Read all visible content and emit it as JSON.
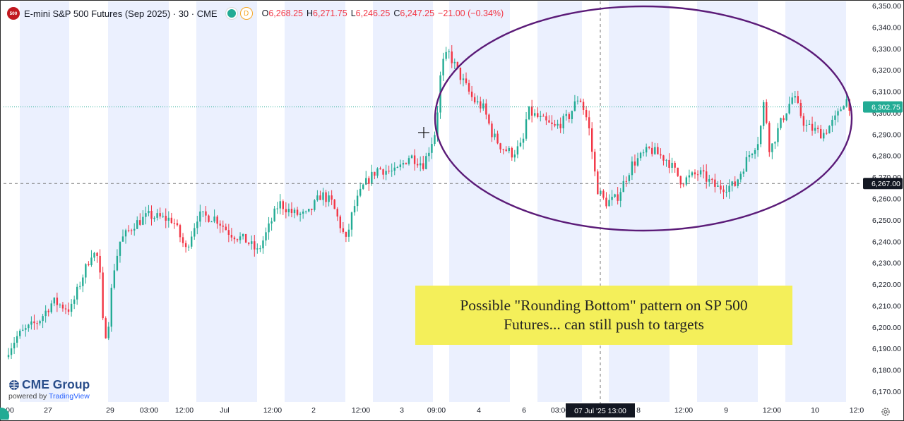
{
  "header": {
    "symbol_badge": "500",
    "title": "E-mini S&P 500 Futures (Sep 2025) · 30 · CME",
    "d_badge": "D",
    "open_label": "O",
    "open": "6,268.25",
    "high_label": "H",
    "high": "6,271.75",
    "low_label": "L",
    "low": "6,246.25",
    "close_label": "C",
    "close": "6,247.25",
    "change": "−21.00 (−0.34%)"
  },
  "annotation": {
    "text_line1": "Possible \"Rounding Bottom\" pattern on SP 500",
    "text_line2": "Futures... can still push to targets"
  },
  "branding": {
    "logo_text": "CME Group",
    "powered_by": "powered by",
    "provider": "TradingView"
  },
  "colors": {
    "up": "#22ab94",
    "down": "#f23645",
    "session_band": "#ebf0fe",
    "ellipse": "#5b1b78",
    "note_bg": "#f4ef5a",
    "price_badge": "#22ab94",
    "crosshair_badge": "#131722"
  },
  "chart_data": {
    "type": "candlestick",
    "interval": "30 minutes",
    "ylim": [
      6165,
      6352
    ],
    "y_ticks": [
      6170,
      6180,
      6190,
      6200,
      6210,
      6220,
      6230,
      6240,
      6250,
      6260,
      6270,
      6280,
      6290,
      6300,
      6310,
      6320,
      6330,
      6340,
      6350
    ],
    "y_tick_labels": [
      "6,170.00",
      "6,180.00",
      "6,190.00",
      "6,200.00",
      "6,210.00",
      "6,220.00",
      "6,230.00",
      "6,240.00",
      "6,250.00",
      "6,260.00",
      "6,270.00",
      "6,280.00",
      "6,290.00",
      "6,300.00",
      "6,310.00",
      "6,320.00",
      "6,330.00",
      "6,340.00",
      "6,350.00"
    ],
    "x_tick_labels": [
      "00",
      "27",
      "29",
      "03:00",
      "12:00",
      "Jul",
      "12:00",
      "2",
      "12:00",
      "3",
      "09:00",
      "4",
      "6",
      "03:00",
      "13:00",
      "8",
      "12:00",
      "9",
      "12:00",
      "10",
      "12:0"
    ],
    "current_price": 6302.75,
    "current_price_label": "6,302.75",
    "crosshair_price": 6267.0,
    "crosshair_price_label": "6,267.00",
    "crosshair_time_label": "07 Jul '25   13:00",
    "grid": false,
    "price_path": [
      {
        "t": 0,
        "p": 6186
      },
      {
        "t": 20,
        "p": 6196
      },
      {
        "t": 50,
        "p": 6203
      },
      {
        "t": 70,
        "p": 6212
      },
      {
        "t": 95,
        "p": 6208
      },
      {
        "t": 110,
        "p": 6222
      },
      {
        "t": 125,
        "p": 6235
      },
      {
        "t": 135,
        "p": 6232
      },
      {
        "t": 142,
        "p": 6195
      },
      {
        "t": 148,
        "p": 6200
      },
      {
        "t": 155,
        "p": 6225
      },
      {
        "t": 165,
        "p": 6240
      },
      {
        "t": 185,
        "p": 6248
      },
      {
        "t": 205,
        "p": 6252
      },
      {
        "t": 240,
        "p": 6250
      },
      {
        "t": 258,
        "p": 6236
      },
      {
        "t": 275,
        "p": 6252
      },
      {
        "t": 300,
        "p": 6251
      },
      {
        "t": 320,
        "p": 6244
      },
      {
        "t": 345,
        "p": 6240
      },
      {
        "t": 360,
        "p": 6235
      },
      {
        "t": 375,
        "p": 6246
      },
      {
        "t": 390,
        "p": 6258
      },
      {
        "t": 410,
        "p": 6253
      },
      {
        "t": 430,
        "p": 6252
      },
      {
        "t": 450,
        "p": 6262
      },
      {
        "t": 465,
        "p": 6258
      },
      {
        "t": 485,
        "p": 6240
      },
      {
        "t": 495,
        "p": 6255
      },
      {
        "t": 510,
        "p": 6266
      },
      {
        "t": 530,
        "p": 6274
      },
      {
        "t": 555,
        "p": 6272
      },
      {
        "t": 575,
        "p": 6280
      },
      {
        "t": 595,
        "p": 6276
      },
      {
        "t": 612,
        "p": 6292
      },
      {
        "t": 620,
        "p": 6322
      },
      {
        "t": 630,
        "p": 6328
      },
      {
        "t": 645,
        "p": 6318
      },
      {
        "t": 665,
        "p": 6306
      },
      {
        "t": 680,
        "p": 6302
      },
      {
        "t": 692,
        "p": 6290
      },
      {
        "t": 705,
        "p": 6284
      },
      {
        "t": 720,
        "p": 6281
      },
      {
        "t": 735,
        "p": 6285
      },
      {
        "t": 742,
        "p": 6301
      },
      {
        "t": 760,
        "p": 6297
      },
      {
        "t": 780,
        "p": 6293
      },
      {
        "t": 800,
        "p": 6298
      },
      {
        "t": 815,
        "p": 6308
      },
      {
        "t": 828,
        "p": 6295
      },
      {
        "t": 840,
        "p": 6265
      },
      {
        "t": 852,
        "p": 6258
      },
      {
        "t": 868,
        "p": 6260
      },
      {
        "t": 890,
        "p": 6276
      },
      {
        "t": 915,
        "p": 6283
      },
      {
        "t": 940,
        "p": 6278
      },
      {
        "t": 960,
        "p": 6268
      },
      {
        "t": 985,
        "p": 6272
      },
      {
        "t": 1010,
        "p": 6265
      },
      {
        "t": 1035,
        "p": 6266
      },
      {
        "t": 1055,
        "p": 6280
      },
      {
        "t": 1070,
        "p": 6288
      },
      {
        "t": 1077,
        "p": 6306
      },
      {
        "t": 1085,
        "p": 6282
      },
      {
        "t": 1100,
        "p": 6295
      },
      {
        "t": 1118,
        "p": 6308
      },
      {
        "t": 1135,
        "p": 6294
      },
      {
        "t": 1160,
        "p": 6290
      },
      {
        "t": 1180,
        "p": 6298
      },
      {
        "t": 1192,
        "p": 6307
      },
      {
        "t": 1200,
        "p": 6302
      }
    ]
  }
}
